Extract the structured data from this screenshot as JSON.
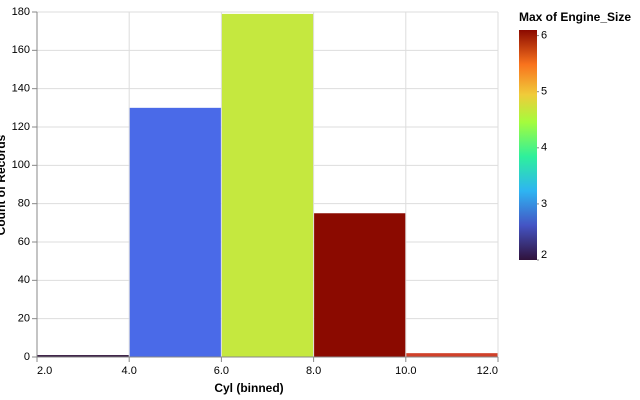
{
  "chart_data": {
    "type": "histogram",
    "x_label": "Cyl (binned)",
    "y_label": "Count of Records",
    "bins": [
      2,
      4,
      6,
      8,
      10,
      12
    ],
    "values": [
      1,
      130,
      179,
      75,
      2
    ],
    "colors": [
      "#30123b",
      "#4a6ae8",
      "#c5e83f",
      "#8b0a00",
      "#d0402a"
    ],
    "xlim": [
      2,
      12
    ],
    "xticks": [
      {
        "value": 2,
        "label": "2.0"
      },
      {
        "value": 4,
        "label": "4.0"
      },
      {
        "value": 6,
        "label": "6.0"
      },
      {
        "value": 8,
        "label": "8.0"
      },
      {
        "value": 10,
        "label": "10.0"
      },
      {
        "value": 12,
        "label": "12.0"
      }
    ],
    "ylim": [
      0,
      180
    ],
    "yticks": [
      0,
      20,
      40,
      60,
      80,
      100,
      120,
      140,
      160,
      180
    ],
    "grid": true,
    "legend": {
      "title": "Max of Engine_Size",
      "position": "right",
      "domain": [
        2,
        6.1
      ],
      "ticks": [
        2,
        3,
        4,
        5,
        6
      ]
    }
  }
}
